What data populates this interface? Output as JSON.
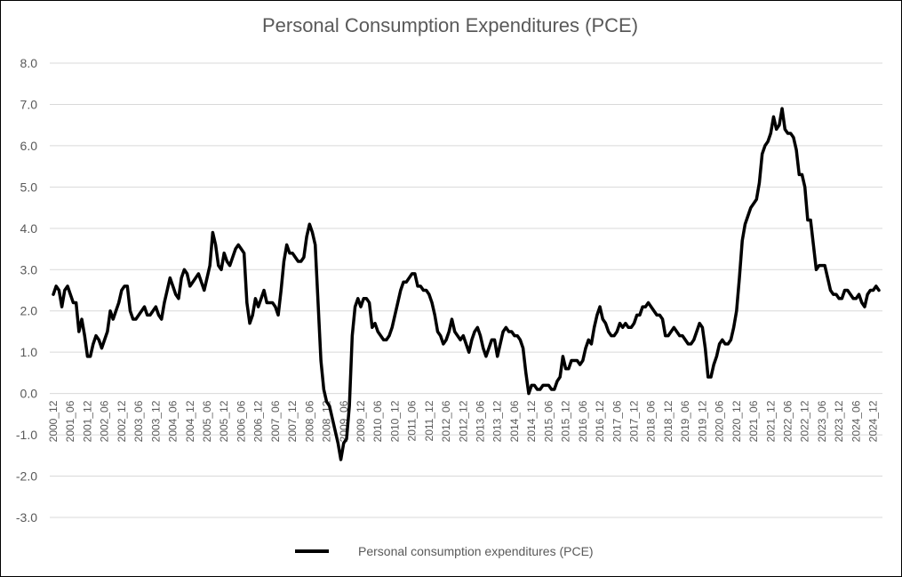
{
  "chart_data": {
    "type": "line",
    "title": "Personal Consumption Expenditures (PCE)",
    "xlabel": "",
    "ylabel": "",
    "ylim": [
      -3,
      8
    ],
    "yticks": [
      "8.0",
      "7.0",
      "6.0",
      "5.0",
      "4.0",
      "3.0",
      "2.0",
      "1.0",
      "0.0",
      "-1.0",
      "-2.0",
      "-3.0"
    ],
    "x_tick_labels": [
      "2000_12",
      "2001_06",
      "2001_12",
      "2002_06",
      "2002_12",
      "2003_06",
      "2003_12",
      "2004_06",
      "2004_12",
      "2005_06",
      "2005_12",
      "2006_06",
      "2006_12",
      "2007_06",
      "2007_12",
      "2008_06",
      "2008_12",
      "2009_06",
      "2009_12",
      "2010_06",
      "2010_12",
      "2011_06",
      "2011_12",
      "2012_06",
      "2012_12",
      "2013_06",
      "2013_12",
      "2014_06",
      "2014_12",
      "2015_06",
      "2015_12",
      "2016_06",
      "2016_12",
      "2017_06",
      "2017_12",
      "2018_06",
      "2018_12",
      "2019_06",
      "2019_12",
      "2020_06",
      "2020_12",
      "2021_06",
      "2021_12",
      "2022_06",
      "2022_12",
      "2023_06",
      "2023_12",
      "2024_06",
      "2024_12"
    ],
    "grid": true,
    "legend_position": "bottom",
    "color": "#000000",
    "series": [
      {
        "name": "Personal consumption expenditures (PCE)",
        "values": [
          2.4,
          2.6,
          2.5,
          2.1,
          2.5,
          2.6,
          2.4,
          2.2,
          2.2,
          1.5,
          1.8,
          1.4,
          0.9,
          0.9,
          1.2,
          1.4,
          1.3,
          1.1,
          1.3,
          1.5,
          2.0,
          1.8,
          2.0,
          2.2,
          2.5,
          2.6,
          2.6,
          2.0,
          1.8,
          1.8,
          1.9,
          2.0,
          2.1,
          1.9,
          1.9,
          2.0,
          2.1,
          1.9,
          1.8,
          2.2,
          2.5,
          2.8,
          2.6,
          2.4,
          2.3,
          2.8,
          3.0,
          2.9,
          2.6,
          2.7,
          2.8,
          2.9,
          2.7,
          2.5,
          2.8,
          3.1,
          3.9,
          3.6,
          3.1,
          3.0,
          3.4,
          3.2,
          3.1,
          3.3,
          3.5,
          3.6,
          3.5,
          3.4,
          2.2,
          1.7,
          1.9,
          2.3,
          2.1,
          2.3,
          2.5,
          2.2,
          2.2,
          2.2,
          2.1,
          1.9,
          2.5,
          3.2,
          3.6,
          3.4,
          3.4,
          3.3,
          3.2,
          3.2,
          3.3,
          3.8,
          4.1,
          3.9,
          3.6,
          2.2,
          0.8,
          0.1,
          -0.2,
          -0.3,
          -0.6,
          -0.9,
          -1.2,
          -1.6,
          -1.2,
          -1.1,
          -0.3,
          1.4,
          2.1,
          2.3,
          2.1,
          2.3,
          2.3,
          2.2,
          1.6,
          1.7,
          1.5,
          1.4,
          1.3,
          1.3,
          1.4,
          1.6,
          1.9,
          2.2,
          2.5,
          2.7,
          2.7,
          2.8,
          2.9,
          2.9,
          2.6,
          2.6,
          2.5,
          2.5,
          2.4,
          2.2,
          1.9,
          1.5,
          1.4,
          1.2,
          1.3,
          1.5,
          1.8,
          1.5,
          1.4,
          1.3,
          1.4,
          1.2,
          1.0,
          1.3,
          1.5,
          1.6,
          1.4,
          1.1,
          0.9,
          1.1,
          1.3,
          1.3,
          0.9,
          1.2,
          1.5,
          1.6,
          1.5,
          1.5,
          1.4,
          1.4,
          1.3,
          1.1,
          0.5,
          0.0,
          0.2,
          0.2,
          0.1,
          0.1,
          0.2,
          0.2,
          0.2,
          0.1,
          0.1,
          0.3,
          0.4,
          0.9,
          0.6,
          0.6,
          0.8,
          0.8,
          0.8,
          0.7,
          0.8,
          1.1,
          1.3,
          1.2,
          1.6,
          1.9,
          2.1,
          1.8,
          1.7,
          1.5,
          1.4,
          1.4,
          1.5,
          1.7,
          1.6,
          1.7,
          1.6,
          1.6,
          1.7,
          1.9,
          1.9,
          2.1,
          2.1,
          2.2,
          2.1,
          2.0,
          1.9,
          1.9,
          1.8,
          1.4,
          1.4,
          1.5,
          1.6,
          1.5,
          1.4,
          1.4,
          1.3,
          1.2,
          1.2,
          1.3,
          1.5,
          1.7,
          1.6,
          1.1,
          0.4,
          0.4,
          0.7,
          0.9,
          1.2,
          1.3,
          1.2,
          1.2,
          1.3,
          1.6,
          2.0,
          2.8,
          3.7,
          4.1,
          4.3,
          4.5,
          4.6,
          4.7,
          5.1,
          5.8,
          6.0,
          6.1,
          6.3,
          6.7,
          6.4,
          6.5,
          6.9,
          6.4,
          6.3,
          6.3,
          6.2,
          5.9,
          5.3,
          5.3,
          5.0,
          4.2,
          4.2,
          3.6,
          3.0,
          3.1,
          3.1,
          3.1,
          2.8,
          2.5,
          2.4,
          2.4,
          2.3,
          2.3,
          2.5,
          2.5,
          2.4,
          2.3,
          2.3,
          2.4,
          2.2,
          2.1,
          2.4,
          2.5,
          2.5,
          2.6,
          2.5
        ]
      }
    ]
  }
}
